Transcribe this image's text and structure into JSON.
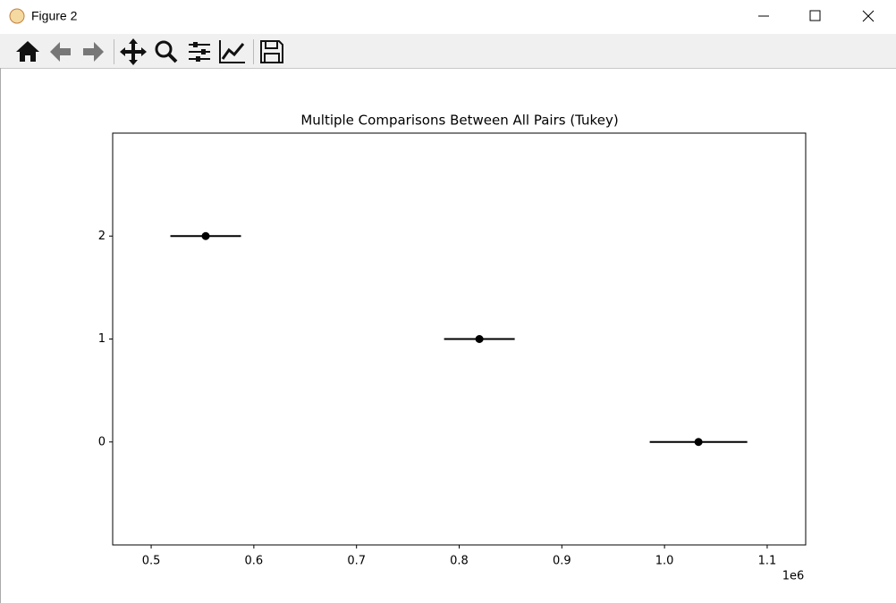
{
  "window": {
    "title": "Figure 2"
  },
  "chart_data": {
    "type": "errorbar",
    "title": "Multiple Comparisons Between All Pairs (Tukey)",
    "x": [
      553100,
      819700,
      1033100
    ],
    "y": [
      2,
      1,
      0
    ],
    "xerr": [
      34400,
      34400,
      47500
    ],
    "color": "#000000",
    "xlim": [
      462500,
      1137500
    ],
    "xticks": [
      {
        "value": 500000,
        "label": "0.5"
      },
      {
        "value": 600000,
        "label": "0.6"
      },
      {
        "value": 700000,
        "label": "0.7"
      },
      {
        "value": 800000,
        "label": "0.8"
      },
      {
        "value": 900000,
        "label": "0.9"
      },
      {
        "value": 1000000,
        "label": "1.0"
      },
      {
        "value": 1100000,
        "label": "1.1"
      }
    ],
    "x_offset_label": "1e6",
    "ylim": [
      -1,
      3
    ],
    "yticks": [
      0,
      1,
      2
    ]
  }
}
